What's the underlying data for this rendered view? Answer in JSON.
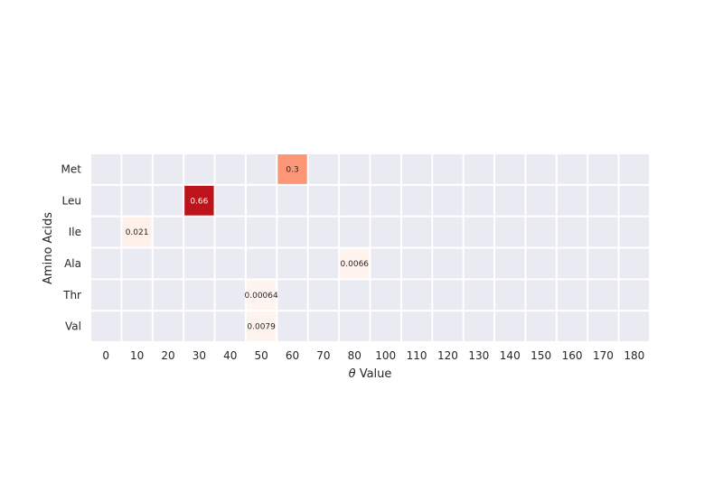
{
  "chart_data": {
    "type": "heatmap",
    "title": "",
    "xlabel_symbol": "θ",
    "xlabel_text": "Value",
    "ylabel": "Amino Acids",
    "x_categories": [
      "0",
      "10",
      "20",
      "30",
      "40",
      "50",
      "60",
      "70",
      "80",
      "100",
      "110",
      "120",
      "130",
      "140",
      "150",
      "160",
      "170",
      "180"
    ],
    "y_categories": [
      "Met",
      "Leu",
      "Ile",
      "Ala",
      "Thr",
      "Val"
    ],
    "cells": [
      {
        "row": "Met",
        "col": "60",
        "value": 0.3,
        "label": "0.3"
      },
      {
        "row": "Leu",
        "col": "30",
        "value": 0.66,
        "label": "0.66"
      },
      {
        "row": "Ile",
        "col": "10",
        "value": 0.021,
        "label": "0.021"
      },
      {
        "row": "Ala",
        "col": "80",
        "value": 0.0066,
        "label": "0.0066"
      },
      {
        "row": "Thr",
        "col": "50",
        "value": 0.00064,
        "label": "0.00064"
      },
      {
        "row": "Val",
        "col": "50",
        "value": 0.0079,
        "label": "0.0079"
      }
    ],
    "value_range": [
      0,
      0.66
    ],
    "colormap": "Reds",
    "empty_cell_color": "#eaeaf2",
    "grid_line_color": "#ffffff",
    "colorbar": false,
    "legend": false
  }
}
